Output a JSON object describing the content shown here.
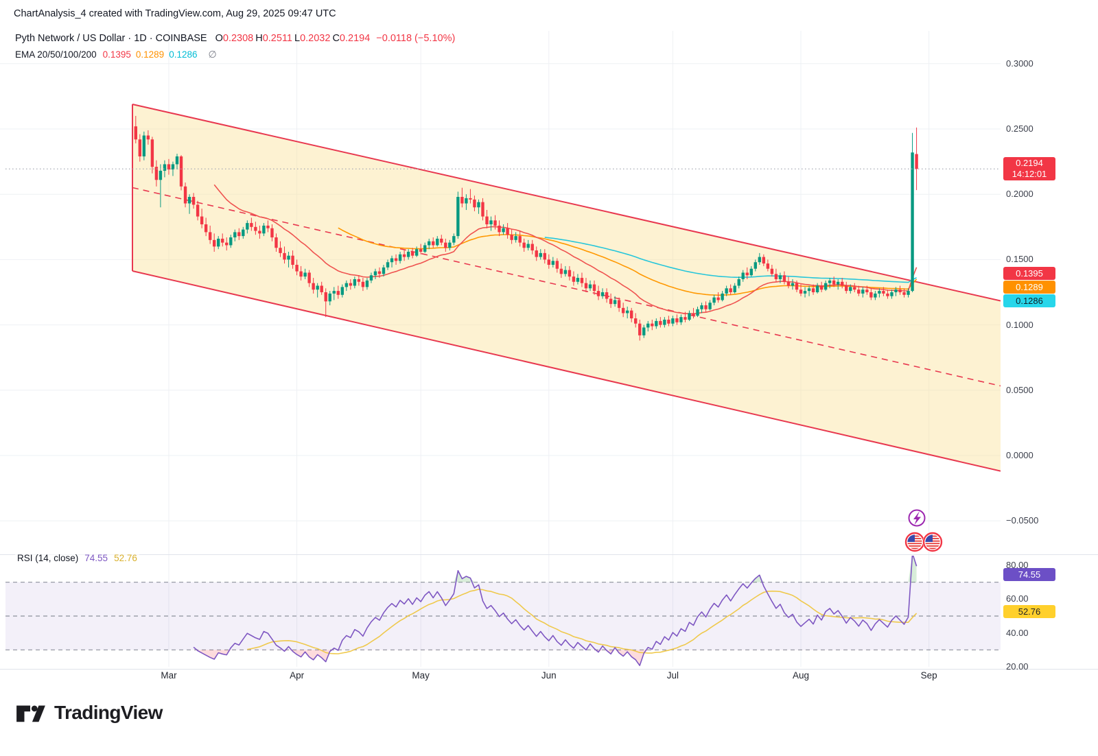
{
  "header": {
    "attribution": "ChartAnalysis_4 created with TradingView.com, Aug 29, 2025 09:47 UTC"
  },
  "symbol": {
    "title": "Pyth Network / US Dollar · 1D · COINBASE",
    "ohlc": [
      {
        "k": "O",
        "v": "0.2308"
      },
      {
        "k": "H",
        "v": "0.2511"
      },
      {
        "k": "L",
        "v": "0.2032"
      },
      {
        "k": "C",
        "v": "0.2194"
      }
    ],
    "change": "−0.0118 (−5.10%)"
  },
  "ema": {
    "label": "EMA 20/50/100/200",
    "values": [
      {
        "text": "0.1395",
        "color": "#F23645"
      },
      {
        "text": "0.1289",
        "color": "#FF9100"
      },
      {
        "text": "0.1286",
        "color": "#00BCD4"
      }
    ],
    "empty_symbol": "∅"
  },
  "rsi_legend": {
    "title": "RSI (14, close)",
    "value": "74.55",
    "ma_value": "52.76",
    "value_color": "#7E57C2",
    "ma_color": "#D9B02C"
  },
  "price_axis": {
    "ticks": [
      {
        "t": "0.3000",
        "v": 0.3
      },
      {
        "t": "0.2500",
        "v": 0.25
      },
      {
        "t": "0.2000",
        "v": 0.2
      },
      {
        "t": "0.1500",
        "v": 0.15
      },
      {
        "t": "0.1000",
        "v": 0.1
      },
      {
        "t": "0.0500",
        "v": 0.05
      },
      {
        "t": "0.0000",
        "v": 0.0
      },
      {
        "t": "−0.0500",
        "v": -0.05
      }
    ],
    "last": {
      "price": "0.2194",
      "time": "14:12:01",
      "bg": "#F23645"
    },
    "ema_labels": [
      {
        "text": "0.1395",
        "bg": "#F23645",
        "fg": "#ffffff",
        "v": 0.1395
      },
      {
        "text": "0.1289",
        "bg": "#FF9100",
        "fg": "#ffffff",
        "v": 0.1289
      },
      {
        "text": "0.1286",
        "bg": "#27D6EA",
        "fg": "#102027",
        "v": 0.1286
      }
    ]
  },
  "rsi_axis": {
    "ticks": [
      {
        "t": "80.00",
        "v": 80
      },
      {
        "t": "60.00",
        "v": 60
      },
      {
        "t": "40.00",
        "v": 40
      },
      {
        "t": "20.00",
        "v": 20
      }
    ],
    "labels": [
      {
        "text": "74.55",
        "bg": "#6C4FC6",
        "fg": "#ffffff",
        "v": 74.55
      },
      {
        "text": "52.76",
        "bg": "#FFD02C",
        "fg": "#1D2026",
        "v": 52.76
      }
    ]
  },
  "logo": {
    "text": "TradingView"
  },
  "icons": {
    "lightning": "crypto-event",
    "flags": "us-economic-events"
  },
  "chart_data": {
    "type": "candlestick",
    "title": "Pyth Network / US Dollar",
    "exchange": "COINBASE",
    "interval": "1D",
    "last_ohlc": {
      "o": 0.2308,
      "h": 0.2511,
      "l": 0.2032,
      "c": 0.2194,
      "change": -0.0118,
      "change_pct": -5.1
    },
    "ylim": [
      -0.075,
      0.325
    ],
    "grid": true,
    "price_line": 0.2194,
    "colors": {
      "up": "#089981",
      "down": "#F23645",
      "ema20": "#EF5350",
      "ema50": "#FF9800",
      "ema100": "#26C6DA",
      "channel": "#E8384F",
      "channel_fill": "rgba(250,227,155,0.45)",
      "rsi": "#7E57C2",
      "rsi_ma": "#EFC94C",
      "rsi_band": "rgba(126,87,194,0.09)"
    },
    "ema_periods": [
      20,
      50,
      100
    ],
    "ema_last": {
      "ema20": 0.1395,
      "ema50": 0.1289,
      "ema100": 0.1286,
      "ema200": null
    },
    "rsi": {
      "period": 14,
      "ma_period": 14,
      "last": 74.55,
      "ma_last": 52.76,
      "levels": [
        70,
        50,
        30
      ],
      "range": [
        20,
        80
      ]
    },
    "months": [
      {
        "label": "Mar",
        "i": 8
      },
      {
        "label": "Apr",
        "i": 39
      },
      {
        "label": "May",
        "i": 69
      },
      {
        "label": "Jun",
        "i": 100
      },
      {
        "label": "Jul",
        "i": 130
      },
      {
        "label": "Aug",
        "i": 161
      },
      {
        "label": "Sep",
        "i": 192
      }
    ],
    "channel": {
      "upper": [
        0.2689,
        0.1184
      ],
      "mid": [
        0.2051,
        0.0533
      ],
      "lower": [
        0.1413,
        -0.0119
      ]
    },
    "candles": [
      [
        0.252,
        0.26,
        0.239,
        0.242
      ],
      [
        0.242,
        0.246,
        0.225,
        0.229
      ],
      [
        0.229,
        0.248,
        0.226,
        0.245
      ],
      [
        0.245,
        0.249,
        0.238,
        0.242
      ],
      [
        0.242,
        0.244,
        0.216,
        0.221
      ],
      [
        0.221,
        0.226,
        0.206,
        0.211
      ],
      [
        0.211,
        0.223,
        0.19,
        0.218
      ],
      [
        0.218,
        0.226,
        0.213,
        0.223
      ],
      [
        0.223,
        0.227,
        0.215,
        0.219
      ],
      [
        0.219,
        0.225,
        0.214,
        0.223
      ],
      [
        0.223,
        0.231,
        0.219,
        0.229
      ],
      [
        0.229,
        0.23,
        0.203,
        0.206
      ],
      [
        0.206,
        0.209,
        0.19,
        0.193
      ],
      [
        0.193,
        0.2,
        0.185,
        0.198
      ],
      [
        0.198,
        0.201,
        0.189,
        0.192
      ],
      [
        0.192,
        0.195,
        0.18,
        0.183
      ],
      [
        0.183,
        0.189,
        0.174,
        0.177
      ],
      [
        0.177,
        0.182,
        0.168,
        0.171
      ],
      [
        0.171,
        0.176,
        0.162,
        0.165
      ],
      [
        0.165,
        0.17,
        0.156,
        0.16
      ],
      [
        0.16,
        0.168,
        0.158,
        0.166
      ],
      [
        0.166,
        0.17,
        0.16,
        0.163
      ],
      [
        0.163,
        0.167,
        0.157,
        0.161
      ],
      [
        0.161,
        0.169,
        0.159,
        0.167
      ],
      [
        0.167,
        0.173,
        0.164,
        0.171
      ],
      [
        0.171,
        0.174,
        0.165,
        0.168
      ],
      [
        0.168,
        0.175,
        0.166,
        0.173
      ],
      [
        0.173,
        0.18,
        0.17,
        0.178
      ],
      [
        0.178,
        0.182,
        0.172,
        0.175
      ],
      [
        0.175,
        0.179,
        0.169,
        0.172
      ],
      [
        0.172,
        0.176,
        0.166,
        0.17
      ],
      [
        0.17,
        0.178,
        0.168,
        0.176
      ],
      [
        0.176,
        0.18,
        0.171,
        0.174
      ],
      [
        0.174,
        0.177,
        0.164,
        0.167
      ],
      [
        0.167,
        0.17,
        0.156,
        0.159
      ],
      [
        0.159,
        0.164,
        0.152,
        0.155
      ],
      [
        0.155,
        0.16,
        0.147,
        0.15
      ],
      [
        0.15,
        0.156,
        0.144,
        0.153
      ],
      [
        0.153,
        0.157,
        0.143,
        0.146
      ],
      [
        0.146,
        0.15,
        0.138,
        0.141
      ],
      [
        0.141,
        0.145,
        0.134,
        0.137
      ],
      [
        0.137,
        0.143,
        0.135,
        0.14
      ],
      [
        0.14,
        0.142,
        0.129,
        0.132
      ],
      [
        0.132,
        0.136,
        0.124,
        0.127
      ],
      [
        0.127,
        0.132,
        0.121,
        0.13
      ],
      [
        0.13,
        0.133,
        0.123,
        0.125
      ],
      [
        0.125,
        0.128,
        0.106,
        0.118
      ],
      [
        0.118,
        0.126,
        0.115,
        0.124
      ],
      [
        0.124,
        0.129,
        0.119,
        0.126
      ],
      [
        0.126,
        0.13,
        0.12,
        0.123
      ],
      [
        0.123,
        0.131,
        0.121,
        0.129
      ],
      [
        0.129,
        0.134,
        0.126,
        0.132
      ],
      [
        0.132,
        0.135,
        0.127,
        0.13
      ],
      [
        0.13,
        0.137,
        0.128,
        0.135
      ],
      [
        0.135,
        0.138,
        0.13,
        0.133
      ],
      [
        0.133,
        0.136,
        0.126,
        0.129
      ],
      [
        0.129,
        0.136,
        0.127,
        0.134
      ],
      [
        0.134,
        0.14,
        0.132,
        0.138
      ],
      [
        0.138,
        0.143,
        0.135,
        0.141
      ],
      [
        0.141,
        0.144,
        0.136,
        0.139
      ],
      [
        0.139,
        0.146,
        0.137,
        0.144
      ],
      [
        0.144,
        0.15,
        0.142,
        0.148
      ],
      [
        0.148,
        0.153,
        0.144,
        0.151
      ],
      [
        0.151,
        0.154,
        0.146,
        0.149
      ],
      [
        0.149,
        0.156,
        0.147,
        0.154
      ],
      [
        0.154,
        0.157,
        0.149,
        0.152
      ],
      [
        0.152,
        0.158,
        0.15,
        0.156
      ],
      [
        0.156,
        0.159,
        0.151,
        0.153
      ],
      [
        0.153,
        0.16,
        0.152,
        0.158
      ],
      [
        0.158,
        0.162,
        0.154,
        0.156
      ],
      [
        0.156,
        0.163,
        0.155,
        0.161
      ],
      [
        0.161,
        0.166,
        0.158,
        0.164
      ],
      [
        0.164,
        0.167,
        0.159,
        0.161
      ],
      [
        0.161,
        0.168,
        0.16,
        0.166
      ],
      [
        0.166,
        0.169,
        0.161,
        0.163
      ],
      [
        0.163,
        0.166,
        0.156,
        0.159
      ],
      [
        0.159,
        0.165,
        0.157,
        0.163
      ],
      [
        0.163,
        0.17,
        0.161,
        0.168
      ],
      [
        0.168,
        0.202,
        0.166,
        0.198
      ],
      [
        0.198,
        0.205,
        0.19,
        0.193
      ],
      [
        0.193,
        0.2,
        0.188,
        0.197
      ],
      [
        0.197,
        0.204,
        0.193,
        0.196
      ],
      [
        0.196,
        0.199,
        0.187,
        0.19
      ],
      [
        0.19,
        0.196,
        0.185,
        0.194
      ],
      [
        0.194,
        0.197,
        0.18,
        0.183
      ],
      [
        0.183,
        0.188,
        0.174,
        0.177
      ],
      [
        0.177,
        0.183,
        0.172,
        0.18
      ],
      [
        0.18,
        0.184,
        0.173,
        0.176
      ],
      [
        0.176,
        0.18,
        0.168,
        0.171
      ],
      [
        0.171,
        0.177,
        0.169,
        0.174
      ],
      [
        0.174,
        0.178,
        0.166,
        0.169
      ],
      [
        0.169,
        0.173,
        0.162,
        0.165
      ],
      [
        0.165,
        0.171,
        0.163,
        0.168
      ],
      [
        0.168,
        0.172,
        0.16,
        0.163
      ],
      [
        0.163,
        0.166,
        0.156,
        0.159
      ],
      [
        0.159,
        0.165,
        0.157,
        0.162
      ],
      [
        0.162,
        0.165,
        0.154,
        0.157
      ],
      [
        0.157,
        0.16,
        0.149,
        0.152
      ],
      [
        0.152,
        0.158,
        0.15,
        0.155
      ],
      [
        0.155,
        0.158,
        0.147,
        0.15
      ],
      [
        0.15,
        0.154,
        0.143,
        0.146
      ],
      [
        0.146,
        0.152,
        0.144,
        0.149
      ],
      [
        0.149,
        0.151,
        0.14,
        0.143
      ],
      [
        0.143,
        0.147,
        0.136,
        0.139
      ],
      [
        0.139,
        0.145,
        0.137,
        0.142
      ],
      [
        0.142,
        0.145,
        0.134,
        0.137
      ],
      [
        0.137,
        0.141,
        0.13,
        0.133
      ],
      [
        0.133,
        0.139,
        0.131,
        0.136
      ],
      [
        0.136,
        0.14,
        0.129,
        0.132
      ],
      [
        0.132,
        0.136,
        0.125,
        0.128
      ],
      [
        0.128,
        0.134,
        0.126,
        0.131
      ],
      [
        0.131,
        0.134,
        0.123,
        0.126
      ],
      [
        0.126,
        0.13,
        0.119,
        0.122
      ],
      [
        0.122,
        0.128,
        0.12,
        0.125
      ],
      [
        0.125,
        0.128,
        0.117,
        0.12
      ],
      [
        0.12,
        0.124,
        0.113,
        0.116
      ],
      [
        0.116,
        0.122,
        0.114,
        0.119
      ],
      [
        0.119,
        0.121,
        0.11,
        0.113
      ],
      [
        0.113,
        0.117,
        0.106,
        0.109
      ],
      [
        0.109,
        0.114,
        0.105,
        0.111
      ],
      [
        0.111,
        0.113,
        0.102,
        0.105
      ],
      [
        0.105,
        0.109,
        0.098,
        0.101
      ],
      [
        0.101,
        0.104,
        0.088,
        0.092
      ],
      [
        0.092,
        0.1,
        0.09,
        0.098
      ],
      [
        0.098,
        0.103,
        0.095,
        0.101
      ],
      [
        0.101,
        0.104,
        0.096,
        0.099
      ],
      [
        0.099,
        0.105,
        0.097,
        0.103
      ],
      [
        0.103,
        0.106,
        0.098,
        0.1
      ],
      [
        0.1,
        0.106,
        0.098,
        0.104
      ],
      [
        0.104,
        0.107,
        0.099,
        0.101
      ],
      [
        0.101,
        0.107,
        0.099,
        0.105
      ],
      [
        0.105,
        0.108,
        0.1,
        0.102
      ],
      [
        0.102,
        0.108,
        0.1,
        0.106
      ],
      [
        0.106,
        0.11,
        0.102,
        0.104
      ],
      [
        0.104,
        0.111,
        0.103,
        0.109
      ],
      [
        0.109,
        0.113,
        0.105,
        0.107
      ],
      [
        0.107,
        0.114,
        0.106,
        0.112
      ],
      [
        0.112,
        0.117,
        0.109,
        0.115
      ],
      [
        0.115,
        0.118,
        0.11,
        0.112
      ],
      [
        0.112,
        0.119,
        0.111,
        0.117
      ],
      [
        0.117,
        0.123,
        0.115,
        0.121
      ],
      [
        0.121,
        0.125,
        0.117,
        0.119
      ],
      [
        0.119,
        0.126,
        0.118,
        0.124
      ],
      [
        0.124,
        0.13,
        0.122,
        0.128
      ],
      [
        0.128,
        0.131,
        0.123,
        0.125
      ],
      [
        0.125,
        0.132,
        0.124,
        0.13
      ],
      [
        0.13,
        0.137,
        0.128,
        0.135
      ],
      [
        0.135,
        0.142,
        0.133,
        0.14
      ],
      [
        0.14,
        0.144,
        0.135,
        0.138
      ],
      [
        0.138,
        0.145,
        0.137,
        0.143
      ],
      [
        0.143,
        0.15,
        0.141,
        0.148
      ],
      [
        0.148,
        0.155,
        0.146,
        0.152
      ],
      [
        0.152,
        0.154,
        0.145,
        0.147
      ],
      [
        0.147,
        0.15,
        0.141,
        0.143
      ],
      [
        0.143,
        0.146,
        0.137,
        0.139
      ],
      [
        0.139,
        0.143,
        0.133,
        0.135
      ],
      [
        0.135,
        0.14,
        0.132,
        0.138
      ],
      [
        0.138,
        0.141,
        0.131,
        0.133
      ],
      [
        0.133,
        0.137,
        0.128,
        0.13
      ],
      [
        0.13,
        0.135,
        0.127,
        0.132
      ],
      [
        0.132,
        0.134,
        0.125,
        0.127
      ],
      [
        0.127,
        0.131,
        0.122,
        0.124
      ],
      [
        0.124,
        0.129,
        0.121,
        0.126
      ],
      [
        0.126,
        0.13,
        0.122,
        0.128
      ],
      [
        0.128,
        0.131,
        0.123,
        0.125
      ],
      [
        0.125,
        0.132,
        0.124,
        0.13
      ],
      [
        0.13,
        0.133,
        0.125,
        0.127
      ],
      [
        0.127,
        0.134,
        0.126,
        0.132
      ],
      [
        0.132,
        0.136,
        0.128,
        0.134
      ],
      [
        0.134,
        0.137,
        0.129,
        0.131
      ],
      [
        0.131,
        0.135,
        0.127,
        0.133
      ],
      [
        0.133,
        0.136,
        0.128,
        0.13
      ],
      [
        0.13,
        0.133,
        0.124,
        0.126
      ],
      [
        0.126,
        0.131,
        0.124,
        0.129
      ],
      [
        0.129,
        0.132,
        0.125,
        0.127
      ],
      [
        0.127,
        0.13,
        0.122,
        0.124
      ],
      [
        0.124,
        0.129,
        0.121,
        0.127
      ],
      [
        0.127,
        0.13,
        0.123,
        0.125
      ],
      [
        0.125,
        0.128,
        0.119,
        0.121
      ],
      [
        0.121,
        0.126,
        0.119,
        0.124
      ],
      [
        0.124,
        0.128,
        0.121,
        0.126
      ],
      [
        0.126,
        0.129,
        0.122,
        0.124
      ],
      [
        0.124,
        0.127,
        0.12,
        0.122
      ],
      [
        0.122,
        0.127,
        0.12,
        0.125
      ],
      [
        0.125,
        0.129,
        0.122,
        0.127
      ],
      [
        0.127,
        0.13,
        0.123,
        0.125
      ],
      [
        0.125,
        0.128,
        0.121,
        0.123
      ],
      [
        0.123,
        0.128,
        0.121,
        0.126
      ],
      [
        0.126,
        0.247,
        0.125,
        0.232
      ],
      [
        0.2308,
        0.2511,
        0.2032,
        0.2194
      ]
    ]
  }
}
